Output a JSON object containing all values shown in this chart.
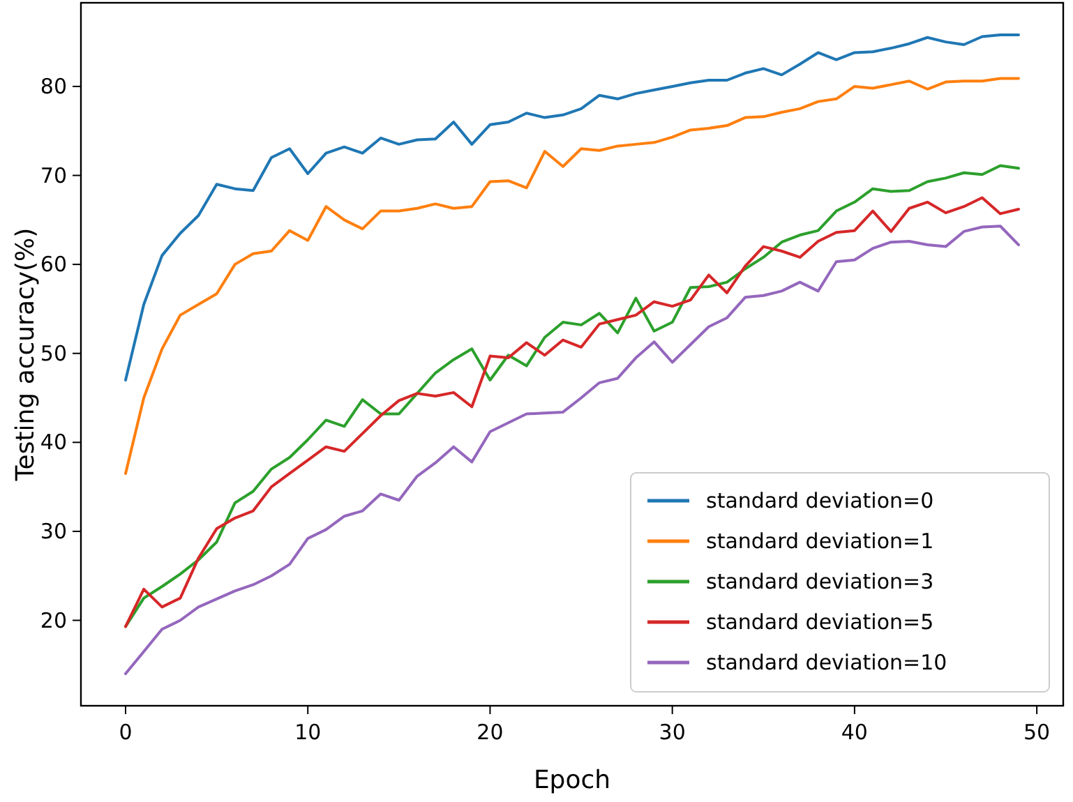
{
  "chart_data": {
    "type": "line",
    "xlabel": "Epoch",
    "ylabel": "Testing accuracy(%)",
    "x": [
      0,
      1,
      2,
      3,
      4,
      5,
      6,
      7,
      8,
      9,
      10,
      11,
      12,
      13,
      14,
      15,
      16,
      17,
      18,
      19,
      20,
      21,
      22,
      23,
      24,
      25,
      26,
      27,
      28,
      29,
      30,
      31,
      32,
      33,
      34,
      35,
      36,
      37,
      38,
      39,
      40,
      41,
      42,
      43,
      44,
      45,
      46,
      47,
      48,
      49
    ],
    "xlim": [
      -2.45,
      51.45
    ],
    "xticks": [
      0,
      10,
      20,
      30,
      40,
      50
    ],
    "ylim": [
      10.4,
      89.4
    ],
    "yticks": [
      20,
      30,
      40,
      50,
      60,
      70,
      80
    ],
    "grid": false,
    "legend": "bottom right",
    "marker": "none",
    "line_style": "solid",
    "series": [
      {
        "name": "standard deviation=0",
        "color": "#1f77b4",
        "values": [
          47,
          55.5,
          61,
          63.5,
          65.5,
          69,
          68.5,
          68.3,
          72,
          73,
          70.2,
          72.5,
          73.2,
          72.5,
          74.2,
          73.5,
          74,
          74.1,
          76,
          73.5,
          75.7,
          76,
          77,
          76.5,
          76.8,
          77.5,
          79,
          78.6,
          79.2,
          79.6,
          80,
          80.4,
          80.7,
          80.7,
          81.5,
          82,
          81.3,
          82.5,
          83.8,
          83,
          83.8,
          83.9,
          84.3,
          84.8,
          85.5,
          85,
          84.7,
          85.6,
          85.8,
          85.8
        ]
      },
      {
        "name": "standard deviation=1",
        "color": "#ff7f0e",
        "values": [
          36.5,
          45,
          50.5,
          54.3,
          55.5,
          56.7,
          60,
          61.2,
          61.5,
          63.8,
          62.7,
          66.5,
          65,
          64,
          66,
          66,
          66.3,
          66.8,
          66.3,
          66.5,
          69.3,
          69.4,
          68.6,
          72.7,
          71,
          73,
          72.8,
          73.3,
          73.5,
          73.7,
          74.3,
          75.1,
          75.3,
          75.6,
          76.5,
          76.6,
          77.1,
          77.5,
          78.3,
          78.6,
          80,
          79.8,
          80.2,
          80.6,
          79.7,
          80.5,
          80.6,
          80.6,
          80.9,
          80.9
        ]
      },
      {
        "name": "standard deviation=3",
        "color": "#2ca02c",
        "values": [
          19.3,
          22.5,
          23.8,
          25.2,
          26.8,
          28.8,
          33.2,
          34.5,
          37,
          38.3,
          40.3,
          42.5,
          41.8,
          44.8,
          43.2,
          43.2,
          45.5,
          47.8,
          49.3,
          50.5,
          47,
          49.8,
          48.6,
          51.8,
          53.5,
          53.2,
          54.5,
          52.3,
          56.2,
          52.5,
          53.5,
          57.4,
          57.5,
          58,
          59.5,
          60.8,
          62.5,
          63.3,
          63.8,
          66,
          67,
          68.5,
          68.2,
          68.3,
          69.3,
          69.7,
          70.3,
          70.1,
          71.1,
          70.8
        ]
      },
      {
        "name": "standard deviation=5",
        "color": "#d62728",
        "values": [
          19.3,
          23.5,
          21.5,
          22.5,
          27,
          30.3,
          31.5,
          32.3,
          35,
          36.5,
          38,
          39.5,
          39,
          41,
          43,
          44.7,
          45.5,
          45.2,
          45.6,
          44,
          49.7,
          49.5,
          51.2,
          49.8,
          51.5,
          50.7,
          53.3,
          53.8,
          54.3,
          55.8,
          55.3,
          56,
          58.8,
          56.8,
          59.8,
          62,
          61.5,
          60.8,
          62.6,
          63.6,
          63.8,
          66,
          63.7,
          66.3,
          67,
          65.8,
          66.5,
          67.5,
          65.7,
          66.2
        ]
      },
      {
        "name": "standard deviation=10",
        "color": "#9467bd",
        "values": [
          14,
          16.5,
          19,
          20,
          21.5,
          22.4,
          23.3,
          24,
          25,
          26.3,
          29.2,
          30.2,
          31.7,
          32.3,
          34.2,
          33.5,
          36.2,
          37.7,
          39.5,
          37.8,
          41.2,
          42.2,
          43.2,
          43.3,
          43.4,
          45,
          46.7,
          47.2,
          49.5,
          51.3,
          49,
          51,
          53,
          54,
          56.3,
          56.5,
          57,
          58,
          57,
          60.3,
          60.5,
          61.8,
          62.5,
          62.6,
          62.2,
          62,
          63.7,
          64.2,
          64.3,
          62.2
        ]
      }
    ]
  }
}
